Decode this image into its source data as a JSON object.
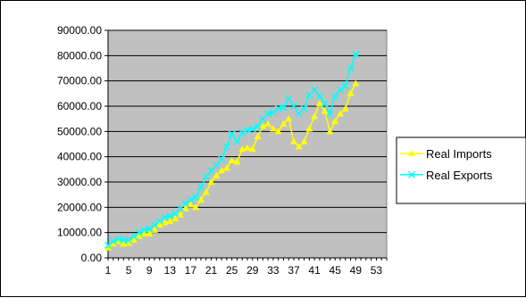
{
  "chart_data": {
    "type": "line",
    "title": "",
    "xlabel": "",
    "ylabel": "",
    "x": [
      1,
      2,
      3,
      4,
      5,
      6,
      7,
      8,
      9,
      10,
      11,
      12,
      13,
      14,
      15,
      16,
      17,
      18,
      19,
      20,
      21,
      22,
      23,
      24,
      25,
      26,
      27,
      28,
      29,
      30,
      31,
      32,
      33,
      34,
      35,
      36,
      37,
      38,
      39,
      40,
      41,
      42,
      43,
      44,
      45,
      46,
      47,
      48,
      49
    ],
    "xticks": [
      1,
      5,
      9,
      13,
      17,
      21,
      25,
      29,
      33,
      37,
      41,
      45,
      49,
      53
    ],
    "xlim": [
      1,
      55
    ],
    "ylim": [
      0,
      90000
    ],
    "yticks": [
      0,
      10000,
      20000,
      30000,
      40000,
      50000,
      60000,
      70000,
      80000,
      90000
    ],
    "ytick_labels": [
      "0.00",
      "10000.00",
      "20000.00",
      "30000.00",
      "40000.00",
      "50000.00",
      "60000.00",
      "70000.00",
      "80000.00",
      "90000.00"
    ],
    "grid": true,
    "plot_background": "#c0c0c0",
    "legend_position": "right",
    "series": [
      {
        "name": "Real Imports",
        "color": "#ffff00",
        "marker": "triangle",
        "values": [
          4000,
          5500,
          6500,
          5500,
          5800,
          7000,
          8500,
          9500,
          9500,
          11000,
          13000,
          14000,
          14500,
          15500,
          17000,
          19500,
          21000,
          20000,
          23000,
          26000,
          30000,
          32500,
          34500,
          35500,
          38500,
          38000,
          43000,
          43500,
          43000,
          48000,
          52000,
          53000,
          51000,
          50000,
          53000,
          55000,
          46000,
          44000,
          46000,
          51000,
          56000,
          61000,
          58000,
          50000,
          54000,
          57000,
          59000,
          65000,
          69000
        ]
      },
      {
        "name": "Real Exports",
        "color": "#00ffff",
        "marker": "x",
        "values": [
          5000,
          6500,
          7500,
          7000,
          7000,
          8500,
          10000,
          11000,
          11500,
          13000,
          14500,
          16000,
          16500,
          17500,
          19500,
          21500,
          23000,
          24000,
          28000,
          32000,
          34500,
          36500,
          39000,
          44000,
          49000,
          46000,
          49500,
          50500,
          51000,
          52000,
          55000,
          57000,
          57500,
          59000,
          59500,
          63000,
          60000,
          57000,
          59000,
          64500,
          66500,
          64000,
          61000,
          57000,
          64000,
          66500,
          68000,
          75000,
          80500
        ]
      }
    ]
  }
}
